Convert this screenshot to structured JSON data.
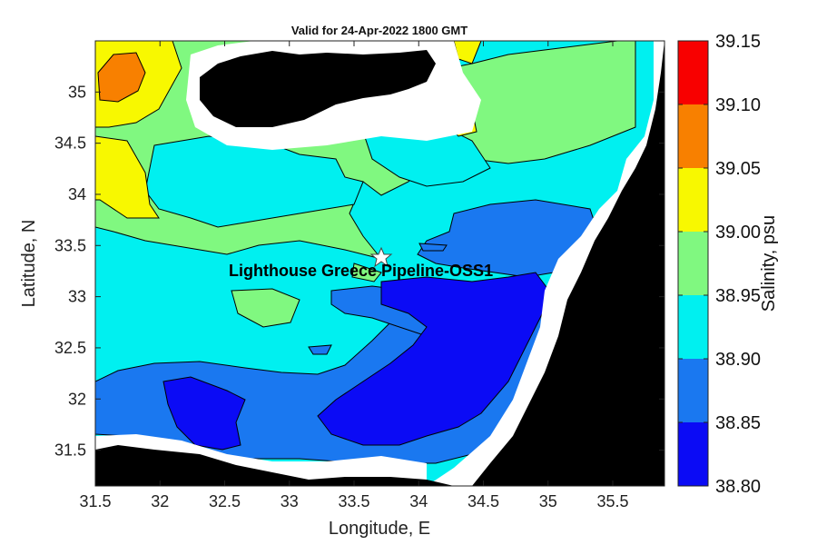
{
  "title": "Valid for 24-Apr-2022 1800 GMT",
  "xlabel": "Longitude, E",
  "ylabel": "Latitude, N",
  "site_label": "Lighthouse Greece Pipeline-OSS1",
  "x_ticks": [
    "31.5",
    "32",
    "32.5",
    "33",
    "33.5",
    "34",
    "34.5",
    "35",
    "35.5"
  ],
  "y_ticks": [
    "31.5",
    "32",
    "32.5",
    "33",
    "33.5",
    "34",
    "34.5",
    "35"
  ],
  "colorbar": {
    "label": "Salinity, psu",
    "ticks": [
      "39.15",
      "39.10",
      "39.05",
      "39.00",
      "38.95",
      "38.90",
      "38.85",
      "38.80"
    ]
  },
  "colors": {
    "level_38_80": "#0b0bf5",
    "level_38_85": "#1a78f0",
    "level_38_90": "#00f0f0",
    "level_38_95": "#80f880",
    "level_39_00": "#f8f800",
    "level_39_05": "#f88000",
    "level_39_10": "#f80000",
    "land": "#000000",
    "no_data": "#ffffff"
  },
  "chart_data": {
    "type": "heatmap",
    "xlim": [
      31.5,
      35.9
    ],
    "ylim": [
      31.15,
      35.5
    ],
    "value_range": [
      38.8,
      39.15
    ],
    "site": {
      "lon": 33.7,
      "lat": 33.38
    }
  }
}
